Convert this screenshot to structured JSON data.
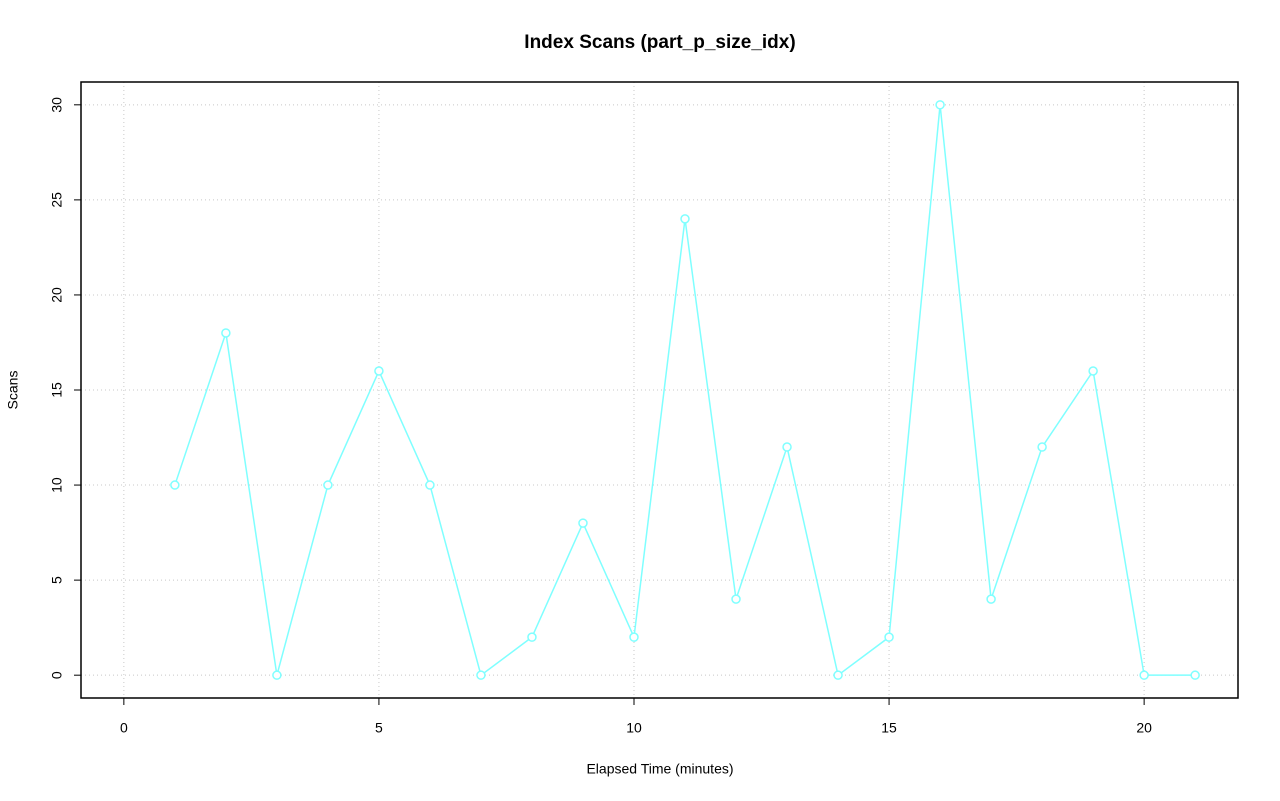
{
  "chart_data": {
    "type": "line",
    "title": "Index Scans (part_p_size_idx)",
    "x_label": "Elapsed Time (minutes)",
    "y_label": "Scans",
    "x": [
      1,
      2,
      3,
      4,
      5,
      6,
      7,
      8,
      9,
      10,
      11,
      12,
      13,
      14,
      15,
      16,
      17,
      18,
      19,
      20,
      21
    ],
    "series": [
      {
        "color": "#7fffff",
        "values": [
          10,
          18,
          0,
          10,
          16,
          10,
          0,
          2,
          8,
          2,
          24,
          4,
          12,
          0,
          2,
          30,
          4,
          12,
          16,
          0,
          0
        ]
      }
    ],
    "xlim": [
      -0.84,
      21.84
    ],
    "xticks": [
      0,
      5,
      10,
      15,
      20
    ],
    "ylim": [
      -1.2,
      31.2
    ],
    "yticks": [
      0,
      5,
      10,
      15,
      20,
      25,
      30
    ],
    "grid": true,
    "markers": true
  }
}
